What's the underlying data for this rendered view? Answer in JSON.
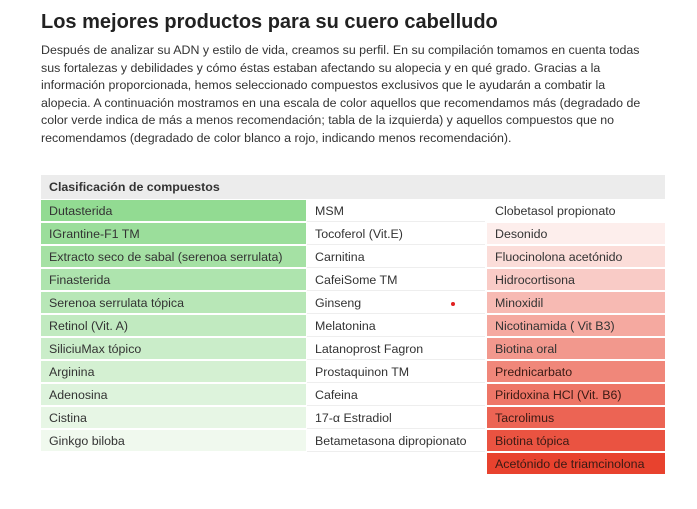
{
  "header": {
    "title": "Los mejores productos para su cuero cabelludo"
  },
  "paragraph": {
    "lines": [
      "Después de analizar su ADN y estilo de vida, creamos su perfil. En su compilación tomamos en cuenta todas",
      "sus fortalezas y debilidades y cómo éstas estaban afectando su alopecia y en qué grado. Gracias a la",
      "información proporcionada, hemos seleccionado compuestos exclusivos que le ayudarán a combatir la",
      "alopecia. A continuación mostramos en una escala de color aquellos que recomendamos más (degradado de",
      "color verde indica de más a menos recomendación; tabla de la izquierda) y aquellos compuestos que no",
      "recomendamos (degradado de color blanco a rojo, indicando menos recomendación)."
    ]
  },
  "table": {
    "header": "Clasificación de compuestos",
    "columns": [
      {
        "items": [
          "Dutasterida",
          "IGrantine-F1 TM",
          "Extracto seco de sabal (serenoa serrulata)",
          "Finasterida",
          "Serenoa serrulata tópica",
          "Retinol (Vit. A)",
          "SiliciuMax tópico",
          "Arginina",
          "Adenosina",
          "Cistina",
          "Ginkgo biloba"
        ]
      },
      {
        "items": [
          "MSM",
          "Tocoferol (Vit.E)",
          "Carnitina",
          "CafeiSome TM",
          "Ginseng",
          "Melatonina",
          "Latanoprost Fagron",
          "Prostaquinon TM",
          "Cafeina",
          "17-α Estradiol",
          "Betametasona dipropionato"
        ]
      },
      {
        "items": [
          "Clobetasol propionato",
          "Desonido",
          "Fluocinolona acetónido",
          "Hidrocortisona",
          "Minoxidil",
          "Nicotinamida ( Vit B3)",
          "Biotina oral",
          "Prednicarbato",
          "Piridoxina HCl (Vit. B6)",
          "Tacrolimus",
          "Biotina tópica",
          "Acetónido de triamcinolona"
        ]
      }
    ]
  }
}
